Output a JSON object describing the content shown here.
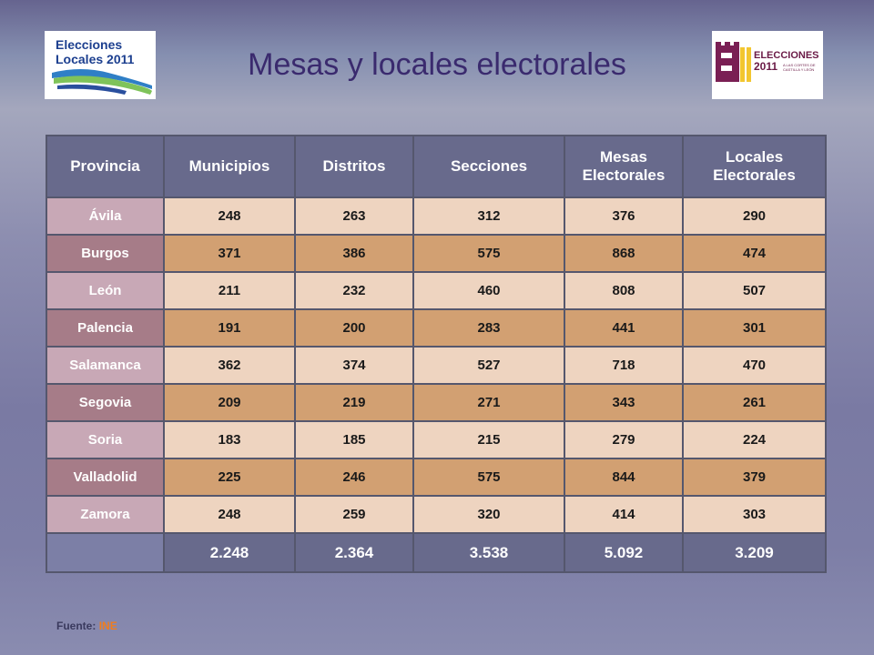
{
  "title": "Mesas y locales electorales",
  "logos": {
    "left": {
      "line1": "Elecciones",
      "line2": "Locales 2011"
    },
    "right": {
      "word": "ELECCIONES",
      "year": "2011",
      "subtitle1": "A LAS CORTES DE",
      "subtitle2": "CASTILLA Y LEÓN"
    }
  },
  "table": {
    "headers": [
      "Provincia",
      "Municipios",
      "Distritos",
      "Secciones",
      "Mesas Electorales",
      "Locales Electorales"
    ],
    "rows": [
      {
        "provincia": "Ávila",
        "values": [
          "248",
          "263",
          "312",
          "376",
          "290"
        ]
      },
      {
        "provincia": "Burgos",
        "values": [
          "371",
          "386",
          "575",
          "868",
          "474"
        ]
      },
      {
        "provincia": "León",
        "values": [
          "211",
          "232",
          "460",
          "808",
          "507"
        ]
      },
      {
        "provincia": "Palencia",
        "values": [
          "191",
          "200",
          "283",
          "441",
          "301"
        ]
      },
      {
        "provincia": "Salamanca",
        "values": [
          "362",
          "374",
          "527",
          "718",
          "470"
        ]
      },
      {
        "provincia": "Segovia",
        "values": [
          "209",
          "219",
          "271",
          "343",
          "261"
        ]
      },
      {
        "provincia": "Soria",
        "values": [
          "183",
          "185",
          "215",
          "279",
          "224"
        ]
      },
      {
        "provincia": "Valladolid",
        "values": [
          "225",
          "246",
          "575",
          "844",
          "379"
        ]
      },
      {
        "provincia": "Zamora",
        "values": [
          "248",
          "259",
          "320",
          "414",
          "303"
        ]
      }
    ],
    "totals": [
      "2.248",
      "2.364",
      "3.538",
      "5.092",
      "3.209"
    ]
  },
  "source": {
    "label": "Fuente:",
    "value": "INE"
  },
  "colors": {
    "header": "#686a8c",
    "row_light": "#eed4c0",
    "row_dark": "#d2a072",
    "title": "#3a2a6e",
    "source_value": "#f07d1e"
  }
}
